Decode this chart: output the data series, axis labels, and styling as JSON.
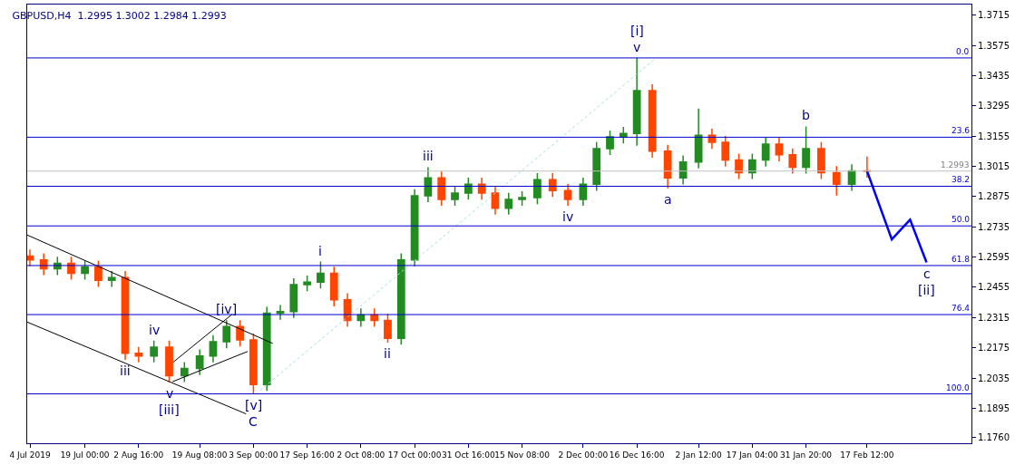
{
  "chart_data": {
    "type": "candlestick",
    "title": "GBPUSD,H4  1.2995 1.3002 1.2984 1.2993",
    "xlim": [
      "2019-07-03T06:00",
      "2020-03-17"
    ],
    "xticks": [
      {
        "value": "2019-07-04",
        "label": "4 Jul 2019"
      },
      {
        "value": "2019-07-19",
        "label": "19 Jul 00:00"
      },
      {
        "value": "2019-08-02T16:00",
        "label": "2 Aug 16:00"
      },
      {
        "value": "2019-08-19T08:00",
        "label": "19 Aug 08:00"
      },
      {
        "value": "2019-09-03",
        "label": "3 Sep 00:00"
      },
      {
        "value": "2019-09-17T16:00",
        "label": "17 Sep 16:00"
      },
      {
        "value": "2019-10-02T08:00",
        "label": "2 Oct 08:00"
      },
      {
        "value": "2019-10-17",
        "label": "17 Oct 00:00"
      },
      {
        "value": "2019-10-31T16:00",
        "label": "31 Oct 16:00"
      },
      {
        "value": "2019-11-15T08:00",
        "label": "15 Nov 08:00"
      },
      {
        "value": "2019-12-02",
        "label": "2 Dec 00:00"
      },
      {
        "value": "2019-12-16T16:00",
        "label": "16 Dec 16:00"
      },
      {
        "value": "2020-01-02T12:00",
        "label": "2 Jan 12:00"
      },
      {
        "value": "2020-01-17T04:00",
        "label": "17 Jan 04:00"
      },
      {
        "value": "2020-01-31T20:00",
        "label": "31 Jan 20:00"
      },
      {
        "value": "2020-02-17T12:00",
        "label": "17 Feb 12:00"
      }
    ],
    "ylim": [
      1.1733,
      1.3764
    ],
    "y2lim": [
      114.7,
      -15.9
    ],
    "yticks": [
      1.3715,
      1.3575,
      1.3435,
      1.3295,
      1.3155,
      1.3015,
      1.2875,
      1.2735,
      1.2595,
      1.2455,
      1.2315,
      1.2175,
      1.2035,
      1.1895,
      {
        "value": 1.176,
        "label": "1.1760"
      }
    ],
    "series": [
      {
        "x": [
          "2019-07-04",
          "2019-07-07T18:00",
          "2019-07-11T12:00",
          "2019-07-15T06:00",
          "2019-07-19",
          "2019-07-22T16:00",
          "2019-07-26T08:00",
          "2019-07-30",
          "2019-08-02T16:00",
          "2019-08-06T20:00",
          "2019-08-11",
          "2019-08-15T04:00",
          "2019-08-19T08:00",
          "2019-08-23",
          "2019-08-26T16:00",
          "2019-08-30T08:00",
          "2019-09-03",
          "2019-09-06T16:00",
          "2019-09-10T08:00",
          "2019-09-14",
          "2019-09-17T16:00",
          "2019-09-21T08:00",
          "2019-09-25",
          "2019-09-28T16:00",
          "2019-10-02T08:00",
          "2019-10-06",
          "2019-10-09T16:00",
          "2019-10-13T08:00",
          "2019-10-17",
          "2019-10-20T16:00",
          "2019-10-24T08:00",
          "2019-10-28",
          "2019-10-31T16:00",
          "2019-11-04T08:00",
          "2019-11-08",
          "2019-11-11T16:00",
          "2019-11-15T08:00",
          "2019-11-19T12:00",
          "2019-11-23T16:00",
          "2019-11-27T20:00",
          "2019-12-02",
          "2019-12-05T16:00",
          "2019-12-09T08:00",
          "2019-12-13",
          "2019-12-16T16:00",
          "2019-12-20T21:00",
          "2019-12-25T02:00",
          "2019-12-29T07:00",
          "2020-01-02T12:00",
          "2020-01-06T04:00",
          "2020-01-09T20:00",
          "2020-01-13T12:00",
          "2020-01-17T04:00",
          "2020-01-20T20:00",
          "2020-01-24T12:00",
          "2020-01-28T04:00",
          "2020-01-31T20:00",
          "2020-02-05",
          "2020-02-09T04:00",
          "2020-02-13T08:00",
          "2020-02-17T12:00"
        ],
        "ohlc": [
          [
            1.26,
            1.263,
            1.2552,
            1.2582
          ],
          [
            1.2582,
            1.2612,
            1.2511,
            1.2541
          ],
          [
            1.2541,
            1.2596,
            1.2511,
            1.2566
          ],
          [
            1.2566,
            1.2596,
            1.249,
            1.252
          ],
          [
            1.252,
            1.2579,
            1.249,
            1.2549
          ],
          [
            1.2549,
            1.2579,
            1.2457,
            1.2487
          ],
          [
            1.2487,
            1.253,
            1.2457,
            1.25
          ],
          [
            1.25,
            1.253,
            1.2119,
            1.2149
          ],
          [
            1.2149,
            1.2179,
            1.2107,
            1.2137
          ],
          [
            1.2137,
            1.2208,
            1.2107,
            1.2178
          ],
          [
            1.2178,
            1.2208,
            1.2015,
            1.2046
          ],
          [
            1.2046,
            1.2109,
            1.2016,
            1.2079
          ],
          [
            1.2079,
            1.2167,
            1.2049,
            1.2137
          ],
          [
            1.2137,
            1.2233,
            1.2107,
            1.2203
          ],
          [
            1.2203,
            1.2303,
            1.2173,
            1.2273
          ],
          [
            1.2273,
            1.2303,
            1.2181,
            1.2211
          ],
          [
            1.2211,
            1.2241,
            1.1961,
            1.2005
          ],
          [
            1.2005,
            1.2365,
            1.1975,
            1.2335
          ],
          [
            1.2335,
            1.2373,
            1.2305,
            1.2343
          ],
          [
            1.2343,
            1.2497,
            1.2313,
            1.2467
          ],
          [
            1.2467,
            1.2509,
            1.2437,
            1.2479
          ],
          [
            1.2479,
            1.2574,
            1.2449,
            1.252
          ],
          [
            1.252,
            1.255,
            1.2367,
            1.2397
          ],
          [
            1.2397,
            1.2427,
            1.2272,
            1.2302
          ],
          [
            1.2302,
            1.2357,
            1.2272,
            1.2327
          ],
          [
            1.2327,
            1.2357,
            1.2272,
            1.2302
          ],
          [
            1.2302,
            1.2332,
            1.2199,
            1.2219
          ],
          [
            1.2219,
            1.2612,
            1.2189,
            1.2582
          ],
          [
            1.2582,
            1.2909,
            1.2552,
            1.2879
          ],
          [
            1.2879,
            1.3011,
            1.2849,
            1.2961
          ],
          [
            1.2961,
            1.2991,
            1.2832,
            1.2862
          ],
          [
            1.2862,
            1.2921,
            1.2832,
            1.2891
          ],
          [
            1.2891,
            1.2962,
            1.2861,
            1.2932
          ],
          [
            1.2932,
            1.2962,
            1.2861,
            1.2891
          ],
          [
            1.2891,
            1.2921,
            1.2791,
            1.2821
          ],
          [
            1.2821,
            1.2892,
            1.2791,
            1.2862
          ],
          [
            1.2862,
            1.29,
            1.2832,
            1.287
          ],
          [
            1.287,
            1.2983,
            1.284,
            1.2953
          ],
          [
            1.2953,
            1.2983,
            1.2873,
            1.2903
          ],
          [
            1.2903,
            1.2933,
            1.2832,
            1.2862
          ],
          [
            1.2862,
            1.2962,
            1.2832,
            1.2932
          ],
          [
            1.2932,
            1.3127,
            1.2902,
            1.3097
          ],
          [
            1.3097,
            1.3181,
            1.3067,
            1.3151
          ],
          [
            1.3151,
            1.3197,
            1.3121,
            1.3167
          ],
          [
            1.3167,
            1.3517,
            1.311,
            1.3365
          ],
          [
            1.3365,
            1.3395,
            1.3055,
            1.3085
          ],
          [
            1.3085,
            1.3115,
            1.2913,
            1.2961
          ],
          [
            1.2961,
            1.3065,
            1.2931,
            1.3035
          ],
          [
            1.3035,
            1.3282,
            1.3005,
            1.3159
          ],
          [
            1.3159,
            1.3189,
            1.3096,
            1.3126
          ],
          [
            1.3126,
            1.3156,
            1.3014,
            1.3044
          ],
          [
            1.3044,
            1.3074,
            1.2956,
            1.2986
          ],
          [
            1.2986,
            1.3074,
            1.2956,
            1.3044
          ],
          [
            1.3044,
            1.3148,
            1.3014,
            1.3118
          ],
          [
            1.3118,
            1.3148,
            1.3038,
            1.3068
          ],
          [
            1.3068,
            1.3098,
            1.2981,
            1.3011
          ],
          [
            1.3011,
            1.32,
            1.2981,
            1.3097
          ],
          [
            1.3097,
            1.3127,
            1.2956,
            1.2986
          ],
          [
            1.2986,
            1.3016,
            1.288,
            1.2932
          ],
          [
            1.2932,
            1.3024,
            1.2902,
            1.2994
          ],
          [
            1.2994,
            1.306,
            1.2963,
            1.2993
          ]
        ],
        "colors": [
          "#ff4500",
          "#ff4500",
          "#228b22",
          "#ff4500",
          "#228b22",
          "#ff4500",
          "#228b22",
          "#ff4500",
          "#ff4500",
          "#228b22",
          "#ff4500",
          "#228b22",
          "#228b22",
          "#228b22",
          "#228b22",
          "#ff4500",
          "#ff4500",
          "#228b22",
          "#228b22",
          "#228b22",
          "#228b22",
          "#228b22",
          "#ff4500",
          "#ff4500",
          "#228b22",
          "#ff4500",
          "#ff4500",
          "#228b22",
          "#228b22",
          "#228b22",
          "#ff4500",
          "#228b22",
          "#228b22",
          "#ff4500",
          "#ff4500",
          "#228b22",
          "#228b22",
          "#228b22",
          "#ff4500",
          "#ff4500",
          "#228b22",
          "#228b22",
          "#228b22",
          "#228b22",
          "#228b22",
          "#ff4500",
          "#ff4500",
          "#228b22",
          "#228b22",
          "#ff4500",
          "#ff4500",
          "#ff4500",
          "#228b22",
          "#228b22",
          "#ff4500",
          "#ff4500",
          "#228b22",
          "#ff4500",
          "#ff4500",
          "#228b22",
          "#ff4500"
        ]
      },
      {
        "type": "line",
        "color": "#000000",
        "x": [
          "2019-07-03T06:00",
          "2019-09-08T07:00"
        ],
        "values": [
          1.2697,
          1.2195
        ]
      },
      {
        "type": "line",
        "color": "#000000",
        "x": [
          "2019-07-03T06:00",
          "2019-09-01"
        ],
        "values": [
          1.2294,
          1.1869
        ]
      },
      {
        "type": "line",
        "color": "#000000",
        "x": [
          "2019-08-12T02:00",
          "2019-08-28T06:00"
        ],
        "values": [
          1.2108,
          1.2331
        ]
      },
      {
        "type": "line",
        "color": "#000000",
        "x": [
          "2019-08-11T22:00",
          "2019-09-01T10:00"
        ],
        "values": [
          1.2018,
          1.2158
        ]
      },
      {
        "type": "line",
        "color": "#9fdfe8",
        "line_style": "dotted",
        "x": [
          "2019-09-03T16:00",
          "2019-12-21T23:00"
        ],
        "values": [
          1.1961,
          1.3517
        ]
      },
      {
        "type": "line",
        "color": "#0000ff",
        "x": [
          "2020-02-17T12:00",
          "2020-02-24T06:00",
          "2020-02-29T06:00",
          "2020-03-04T18:00"
        ],
        "values": [
          1.2993,
          1.2677,
          1.2768,
          1.257
        ]
      }
    ],
    "ref_lines": [
      {
        "axis": "y2",
        "value": 0,
        "label": "0.0",
        "color": "#0000cd"
      },
      {
        "axis": "y2",
        "value": 23.6,
        "label": "23.6",
        "color": "#0000cd"
      },
      {
        "axis": "y2",
        "value": 38.2,
        "label": "38.2",
        "color": "#0000cd"
      },
      {
        "axis": "y2",
        "value": 50,
        "label": "50.0",
        "color": "#0000cd"
      },
      {
        "axis": "y2",
        "value": 61.8,
        "label": "61.8",
        "color": "#0000cd"
      },
      {
        "axis": "y2",
        "value": 76.4,
        "label": "76.4",
        "color": "#0000cd"
      },
      {
        "axis": "y2",
        "value": 100,
        "label": "100.0",
        "color": "#0000cd"
      },
      {
        "axis": "y",
        "value": 1.2993,
        "label": "1.2993",
        "color": "#c0c0c0"
      }
    ],
    "annotations": [
      {
        "text": "iii",
        "x": "2019-07-30",
        "y": 1.2119
      },
      {
        "text": "iv",
        "x": "2019-08-06T20:00",
        "y": 1.2208
      },
      {
        "text": "v",
        "x": "2019-08-11",
        "y": 1.2015
      },
      {
        "text": "[iii]",
        "x": "2019-08-11",
        "y": 1.2015
      },
      {
        "text": "[iv]",
        "x": "2019-08-26T16:00",
        "y": 1.2303
      },
      {
        "text": "[v]",
        "x": "2019-09-03",
        "y": 1.1961
      },
      {
        "text": "C",
        "x": "2019-09-03",
        "y": 1.1961
      },
      {
        "text": "i",
        "x": "2019-09-21T08:00",
        "y": 1.2574
      },
      {
        "text": "ii",
        "x": "2019-10-09T16:00",
        "y": 1.2199
      },
      {
        "text": "iii",
        "x": "2019-10-20T16:00",
        "y": 1.3011
      },
      {
        "text": "iv",
        "x": "2019-11-27T20:00",
        "y": 1.2832
      },
      {
        "text": "v",
        "x": "2019-12-16T16:00",
        "y": 1.3517
      },
      {
        "text": "[i]",
        "x": "2019-12-16T16:00",
        "y": 1.3517
      },
      {
        "text": "a",
        "x": "2019-12-25T02:00",
        "y": 1.2913
      },
      {
        "text": "b",
        "x": "2020-01-31T20:00",
        "y": 1.32
      },
      {
        "text": "c",
        "x": "2020-03-04T18:00",
        "y": 1.257
      },
      {
        "text": "[ii]",
        "x": "2020-03-04T18:00",
        "y": 1.257
      }
    ]
  }
}
